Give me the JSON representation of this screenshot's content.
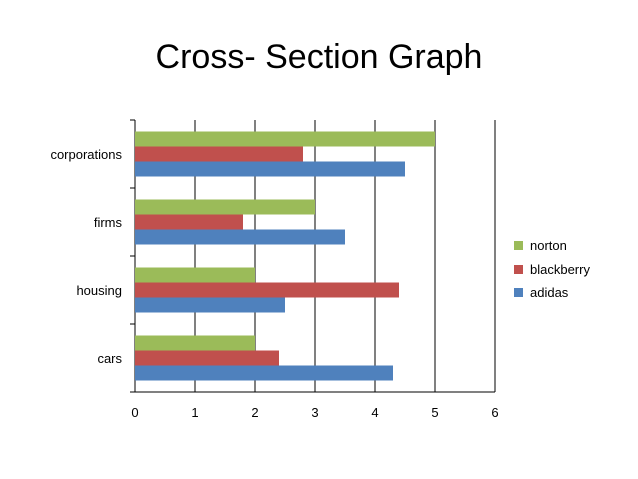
{
  "chart_data": {
    "type": "bar",
    "orientation": "horizontal",
    "title": "Cross- Section Graph",
    "categories": [
      "cars",
      "housing",
      "firms",
      "corporations"
    ],
    "series": [
      {
        "name": "adidas",
        "color": "#4F81BD",
        "values": [
          4.3,
          2.5,
          3.5,
          4.5
        ]
      },
      {
        "name": "blackberry",
        "color": "#C0504D",
        "values": [
          2.4,
          4.4,
          1.8,
          2.8
        ]
      },
      {
        "name": "norton",
        "color": "#9BBB59",
        "values": [
          2.0,
          2.0,
          3.0,
          5.0
        ]
      }
    ],
    "xlim": [
      0,
      6
    ],
    "x_ticks": [
      "0",
      "1",
      "2",
      "3",
      "4",
      "5",
      "6"
    ],
    "grid": true,
    "legend_position": "right"
  }
}
